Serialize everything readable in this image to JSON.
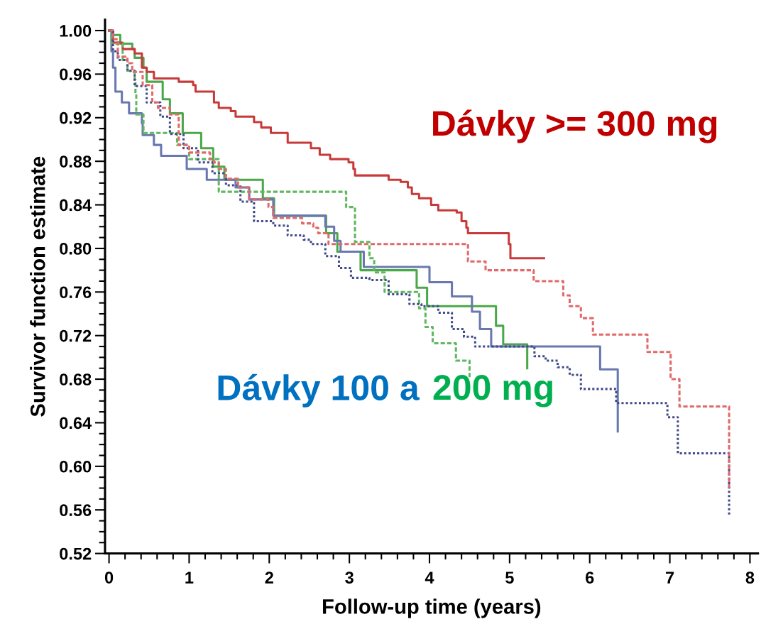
{
  "chart_data": {
    "type": "step",
    "xlabel": "Follow-up time (years)",
    "ylabel": "Survivor function estimate",
    "annotations": [
      "Dávky >= 300 mg",
      "Dávky 100 a",
      "200 mg"
    ],
    "xlim": [
      -0.05,
      8.1
    ],
    "ylim": [
      0.52,
      1.01
    ],
    "xticks": [
      0,
      1,
      2,
      3,
      4,
      5,
      6,
      7,
      8,
      {
        "value": 0.2,
        "label": null
      },
      {
        "value": 0.4,
        "label": null
      },
      {
        "value": 0.6,
        "label": null
      },
      {
        "value": 0.8,
        "label": null
      },
      {
        "value": 1.2,
        "label": null
      },
      {
        "value": 1.4,
        "label": null
      },
      {
        "value": 1.6,
        "label": null
      },
      {
        "value": 1.8,
        "label": null
      },
      {
        "value": 2.2,
        "label": null
      },
      {
        "value": 2.4,
        "label": null
      },
      {
        "value": 2.6,
        "label": null
      },
      {
        "value": 2.8,
        "label": null
      },
      {
        "value": 3.2,
        "label": null
      },
      {
        "value": 3.4,
        "label": null
      },
      {
        "value": 3.6,
        "label": null
      },
      {
        "value": 3.8,
        "label": null
      },
      {
        "value": 4.2,
        "label": null
      },
      {
        "value": 4.4,
        "label": null
      },
      {
        "value": 4.6,
        "label": null
      },
      {
        "value": 4.8,
        "label": null
      },
      {
        "value": 5.2,
        "label": null
      },
      {
        "value": 5.4,
        "label": null
      },
      {
        "value": 5.6,
        "label": null
      },
      {
        "value": 5.8,
        "label": null
      },
      {
        "value": 6.2,
        "label": null
      },
      {
        "value": 6.4,
        "label": null
      },
      {
        "value": 6.6,
        "label": null
      },
      {
        "value": 6.8,
        "label": null
      },
      {
        "value": 7.2,
        "label": null
      },
      {
        "value": 7.4,
        "label": null
      },
      {
        "value": 7.6,
        "label": null
      },
      {
        "value": 7.8,
        "label": null
      }
    ],
    "yticks": [
      {
        "value": 0.52,
        "label": "0.52"
      },
      {
        "value": 0.56,
        "label": "0.56"
      },
      {
        "value": 0.6,
        "label": "0.60"
      },
      {
        "value": 0.64,
        "label": "0.64"
      },
      {
        "value": 0.68,
        "label": "0.68"
      },
      {
        "value": 0.72,
        "label": "0.72"
      },
      {
        "value": 0.76,
        "label": "0.76"
      },
      {
        "value": 0.8,
        "label": "0.80"
      },
      {
        "value": 0.84,
        "label": "0.84"
      },
      {
        "value": 0.88,
        "label": "0.88"
      },
      {
        "value": 0.92,
        "label": "0.92"
      },
      {
        "value": 0.96,
        "label": "0.96"
      },
      {
        "value": 1.0,
        "label": "1.00"
      },
      {
        "value": 0.53,
        "label": null
      },
      {
        "value": 0.54,
        "label": null
      },
      {
        "value": 0.55,
        "label": null
      },
      {
        "value": 0.57,
        "label": null
      },
      {
        "value": 0.58,
        "label": null
      },
      {
        "value": 0.59,
        "label": null
      },
      {
        "value": 0.61,
        "label": null
      },
      {
        "value": 0.62,
        "label": null
      },
      {
        "value": 0.63,
        "label": null
      },
      {
        "value": 0.65,
        "label": null
      },
      {
        "value": 0.66,
        "label": null
      },
      {
        "value": 0.67,
        "label": null
      },
      {
        "value": 0.69,
        "label": null
      },
      {
        "value": 0.7,
        "label": null
      },
      {
        "value": 0.71,
        "label": null
      },
      {
        "value": 0.73,
        "label": null
      },
      {
        "value": 0.74,
        "label": null
      },
      {
        "value": 0.75,
        "label": null
      },
      {
        "value": 0.77,
        "label": null
      },
      {
        "value": 0.78,
        "label": null
      },
      {
        "value": 0.79,
        "label": null
      },
      {
        "value": 0.81,
        "label": null
      },
      {
        "value": 0.82,
        "label": null
      },
      {
        "value": 0.83,
        "label": null
      },
      {
        "value": 0.85,
        "label": null
      },
      {
        "value": 0.86,
        "label": null
      },
      {
        "value": 0.87,
        "label": null
      },
      {
        "value": 0.89,
        "label": null
      },
      {
        "value": 0.9,
        "label": null
      },
      {
        "value": 0.91,
        "label": null
      },
      {
        "value": 0.93,
        "label": null
      },
      {
        "value": 0.94,
        "label": null
      },
      {
        "value": 0.95,
        "label": null
      },
      {
        "value": 0.97,
        "label": null
      },
      {
        "value": 0.98,
        "label": null
      },
      {
        "value": 0.99,
        "label": null
      }
    ],
    "grid": false,
    "legend": false,
    "series": [
      {
        "color": "#5fb85f",
        "line_style": "dashed",
        "x": [
          0,
          0.03,
          0.17,
          0.23,
          0.32,
          0.33,
          0.34,
          0.43,
          0.85,
          1.0,
          1.37,
          2.96,
          3.07,
          3.25,
          3.31,
          3.44,
          3.87,
          3.95,
          4.04,
          4.33,
          4.5
        ],
        "values": [
          1.0,
          0.988,
          0.973,
          0.963,
          0.955,
          0.942,
          0.923,
          0.906,
          0.895,
          0.882,
          0.852,
          0.838,
          0.806,
          0.791,
          0.778,
          0.76,
          0.745,
          0.728,
          0.713,
          0.697,
          0.68
        ]
      },
      {
        "color": "#4aa84a",
        "line_style": "solid",
        "x": [
          0,
          0.05,
          0.14,
          0.29,
          0.32,
          0.43,
          0.47,
          0.67,
          0.76,
          0.92,
          1.15,
          1.3,
          1.44,
          1.92,
          2.06,
          2.71,
          2.85,
          3.14,
          3.84,
          3.97,
          4.83,
          4.92,
          5.22
        ],
        "values": [
          1.0,
          0.996,
          0.988,
          0.983,
          0.975,
          0.966,
          0.953,
          0.937,
          0.924,
          0.906,
          0.892,
          0.875,
          0.863,
          0.846,
          0.83,
          0.814,
          0.797,
          0.78,
          0.764,
          0.747,
          0.729,
          0.712,
          0.69
        ]
      },
      {
        "color": "#6a78b0",
        "line_style": "solid",
        "x": [
          0,
          0.03,
          0.05,
          0.08,
          0.16,
          0.25,
          0.41,
          0.42,
          0.56,
          0.65,
          0.97,
          1.22,
          1.58,
          1.75,
          2.05,
          2.7,
          2.81,
          2.89,
          3.18,
          4.0,
          4.28,
          4.53,
          4.63,
          4.77,
          6.13,
          6.35
        ],
        "values": [
          1.0,
          0.981,
          0.966,
          0.944,
          0.934,
          0.924,
          0.915,
          0.904,
          0.895,
          0.885,
          0.873,
          0.863,
          0.856,
          0.845,
          0.83,
          0.82,
          0.807,
          0.797,
          0.783,
          0.769,
          0.756,
          0.742,
          0.726,
          0.71,
          0.689,
          0.632
        ]
      },
      {
        "color": "#404a8a",
        "line_style": "dotted",
        "x": [
          0,
          0.05,
          0.11,
          0.23,
          0.32,
          0.47,
          0.64,
          0.76,
          0.93,
          1.11,
          1.29,
          1.46,
          1.64,
          1.81,
          2.05,
          2.23,
          2.43,
          2.52,
          2.7,
          2.87,
          3.02,
          3.25,
          3.49,
          3.75,
          3.9,
          4.11,
          4.28,
          4.43,
          4.57,
          5.22,
          5.31,
          5.45,
          5.6,
          5.75,
          5.89,
          6.22,
          6.33,
          6.97,
          7.08,
          7.1,
          7.74
        ],
        "values": [
          1.0,
          0.981,
          0.973,
          0.963,
          0.949,
          0.934,
          0.921,
          0.905,
          0.892,
          0.879,
          0.869,
          0.858,
          0.843,
          0.825,
          0.821,
          0.812,
          0.808,
          0.804,
          0.793,
          0.782,
          0.773,
          0.771,
          0.758,
          0.749,
          0.747,
          0.741,
          0.726,
          0.719,
          0.71,
          0.71,
          0.701,
          0.697,
          0.691,
          0.684,
          0.671,
          0.671,
          0.658,
          0.645,
          0.645,
          0.612,
          0.554
        ]
      },
      {
        "color": "#e06a6a",
        "line_style": "dashed",
        "x": [
          0,
          0.05,
          0.11,
          0.23,
          0.29,
          0.42,
          0.54,
          0.61,
          0.76,
          0.87,
          1.0,
          1.26,
          1.31,
          1.37,
          1.46,
          1.61,
          1.75,
          1.99,
          2.05,
          2.41,
          2.55,
          2.61,
          2.74,
          4.48,
          4.7,
          5.3,
          5.67,
          5.75,
          5.89,
          6.04,
          6.72,
          7.01,
          7.12,
          7.74
        ],
        "values": [
          1.0,
          0.992,
          0.976,
          0.97,
          0.962,
          0.95,
          0.934,
          0.929,
          0.923,
          0.895,
          0.888,
          0.882,
          0.879,
          0.873,
          0.864,
          0.856,
          0.845,
          0.838,
          0.828,
          0.823,
          0.819,
          0.814,
          0.804,
          0.788,
          0.78,
          0.77,
          0.757,
          0.747,
          0.736,
          0.721,
          0.705,
          0.68,
          0.655,
          0.58
        ]
      },
      {
        "color": "#c83a3a",
        "line_style": "solid",
        "x": [
          0,
          0.05,
          0.17,
          0.32,
          0.41,
          0.47,
          0.56,
          0.87,
          1.05,
          1.08,
          1.31,
          1.37,
          1.52,
          1.58,
          1.81,
          1.9,
          2.02,
          2.23,
          2.52,
          2.63,
          2.76,
          2.99,
          3.05,
          3.07,
          3.49,
          3.64,
          3.73,
          3.78,
          3.87,
          4.02,
          4.11,
          4.34,
          4.4,
          4.46,
          4.48,
          4.99,
          5.01,
          5.43
        ],
        "values": [
          1.0,
          0.989,
          0.983,
          0.979,
          0.966,
          0.962,
          0.956,
          0.953,
          0.95,
          0.944,
          0.934,
          0.929,
          0.926,
          0.921,
          0.916,
          0.911,
          0.906,
          0.897,
          0.892,
          0.886,
          0.882,
          0.879,
          0.873,
          0.867,
          0.863,
          0.861,
          0.856,
          0.85,
          0.846,
          0.84,
          0.835,
          0.833,
          0.825,
          0.819,
          0.814,
          0.804,
          0.791,
          0.791
        ]
      }
    ]
  }
}
